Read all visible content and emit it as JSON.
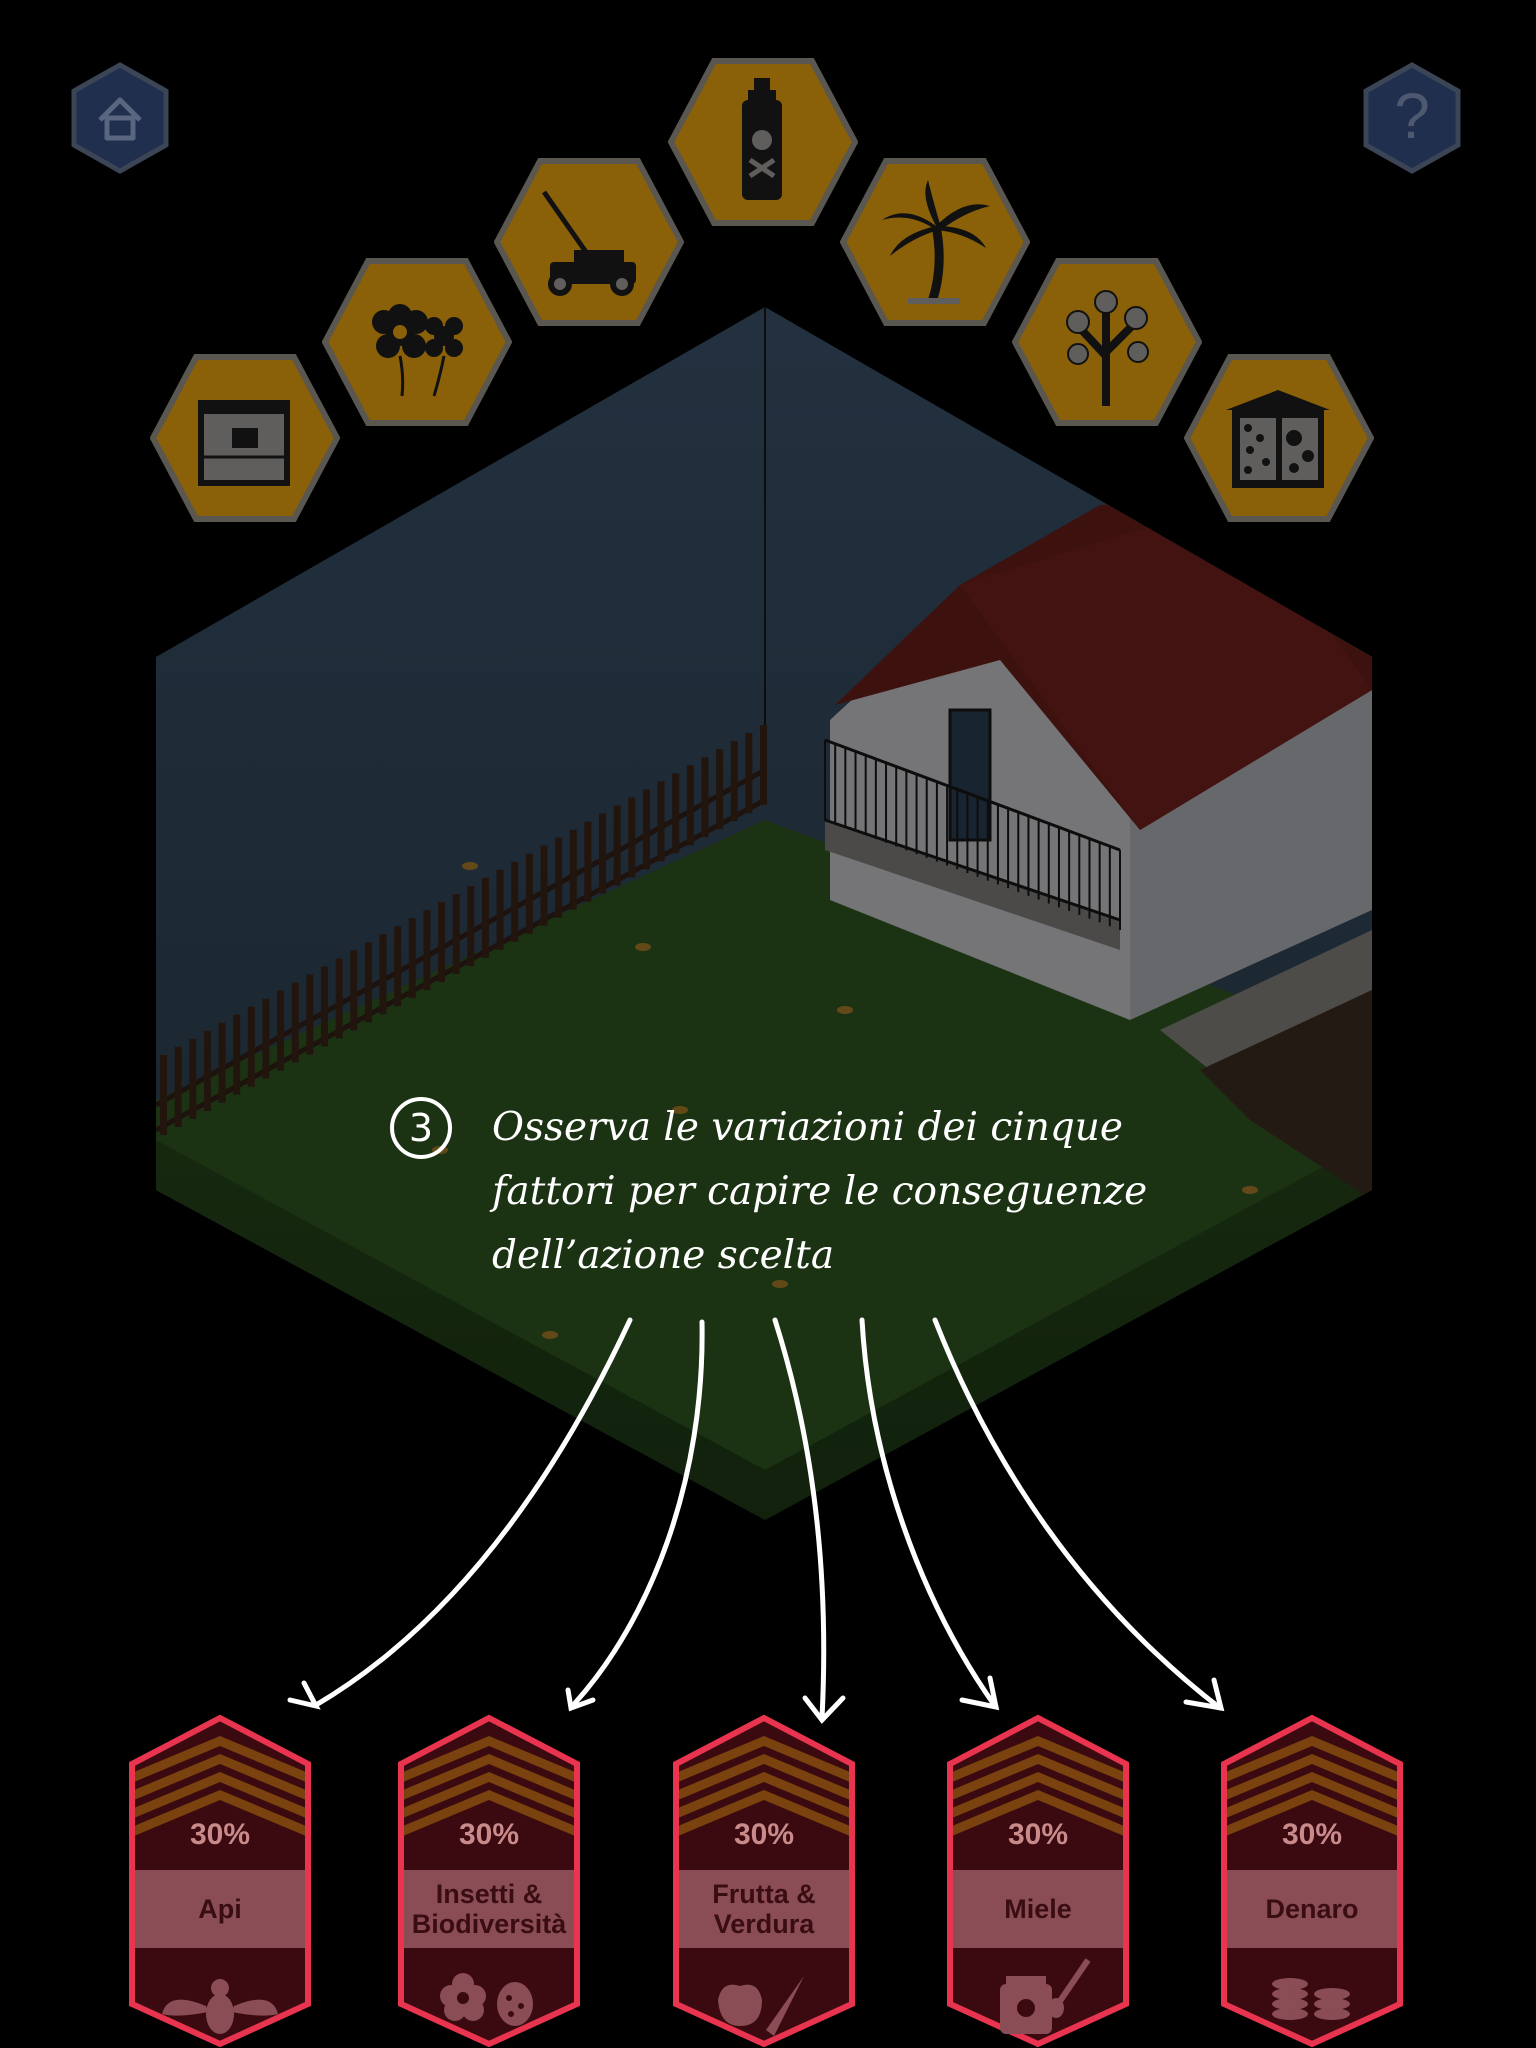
{
  "instruction": {
    "step_number": "3",
    "lines": [
      "Osserva le variazioni dei cinque",
      "fattori per capire le conseguenze",
      "dell’azione scelta"
    ]
  },
  "top_buttons": {
    "home_icon": "home-icon",
    "help_label": "?",
    "help_icon": "question-mark-icon"
  },
  "actions": [
    {
      "id": "beehive",
      "icon": "beehive-icon"
    },
    {
      "id": "flowers",
      "icon": "flowers-icon"
    },
    {
      "id": "lawnmower",
      "icon": "lawnmower-icon"
    },
    {
      "id": "pesticide",
      "icon": "pesticide-spray-icon"
    },
    {
      "id": "palm",
      "icon": "palm-tree-icon"
    },
    {
      "id": "fruit-tree",
      "icon": "flowering-tree-icon"
    },
    {
      "id": "bug-hotel",
      "icon": "insect-hotel-icon"
    }
  ],
  "factors": [
    {
      "percent": "30%",
      "label": "Api",
      "icon": "bee-icon",
      "level": 0.3
    },
    {
      "percent": "30%",
      "label": "Insetti & Biodiversità",
      "icon": "flower-ladybug-icon",
      "level": 0.3
    },
    {
      "percent": "30%",
      "label": "Frutta & Verdura",
      "icon": "apple-carrot-icon",
      "level": 0.3
    },
    {
      "percent": "30%",
      "label": "Miele",
      "icon": "honey-jar-icon",
      "level": 0.3
    },
    {
      "percent": "30%",
      "label": "Denaro",
      "icon": "coins-icon",
      "level": 0.3
    }
  ],
  "colors": {
    "action_gold": "#8a6008",
    "action_border": "#5a5650",
    "nav_blue": "#1f2f4d",
    "factor_border": "#e8344e",
    "factor_dark": "#3a0a10",
    "factor_band": "#8a4d55",
    "chevron_brown": "#7a420e",
    "overlay_white": "#ffffff"
  }
}
